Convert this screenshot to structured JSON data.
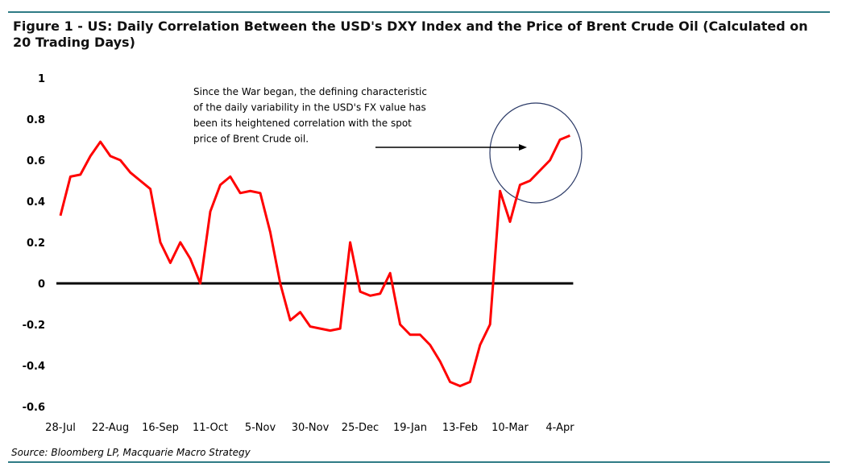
{
  "chart_data": {
    "type": "line",
    "title": "Figure 1 - US: Daily Correlation Between the USD's DXY Index and the Price of Brent Crude Oil (Calculated on 20 Trading Days)",
    "annotation": [
      "Since the War began, the defining characteristic",
      "of the daily variability in the USD's FX value has",
      "been its heightened correlation with the spot",
      "price of Brent Crude oil."
    ],
    "source": "Source: Bloomberg LP, Macquarie Macro Strategy",
    "categories": [
      "28-Jul",
      null,
      null,
      null,
      null,
      "22-Aug",
      null,
      null,
      null,
      null,
      "16-Sep",
      null,
      null,
      null,
      null,
      "11-Oct",
      null,
      null,
      null,
      null,
      "5-Nov",
      null,
      null,
      null,
      null,
      "30-Nov",
      null,
      null,
      null,
      null,
      "25-Dec",
      null,
      null,
      null,
      null,
      "19-Jan",
      null,
      null,
      null,
      null,
      "13-Feb",
      null,
      null,
      null,
      null,
      "10-Mar",
      null,
      null,
      null,
      null,
      "4-Apr",
      null
    ],
    "series": [
      {
        "color": "#ff0000",
        "values": [
          0.33,
          0.52,
          0.53,
          0.62,
          0.69,
          0.62,
          0.6,
          0.54,
          0.5,
          0.46,
          0.2,
          0.1,
          0.2,
          0.12,
          0.0,
          0.35,
          0.48,
          0.52,
          0.44,
          0.45,
          0.44,
          0.25,
          0.0,
          -0.18,
          -0.14,
          -0.21,
          -0.22,
          -0.23,
          -0.22,
          0.2,
          -0.04,
          -0.06,
          -0.05,
          0.05,
          -0.2,
          -0.25,
          -0.25,
          -0.3,
          -0.38,
          -0.48,
          -0.5,
          -0.48,
          -0.3,
          -0.2,
          0.45,
          0.3,
          0.48,
          0.5,
          0.55,
          0.6,
          0.7,
          0.72
        ]
      }
    ],
    "ylim": [
      -0.6,
      1
    ],
    "yticks": [
      -0.6,
      -0.4,
      -0.2,
      0,
      0.2,
      0.4,
      0.6,
      0.8,
      1
    ],
    "grid": false
  }
}
